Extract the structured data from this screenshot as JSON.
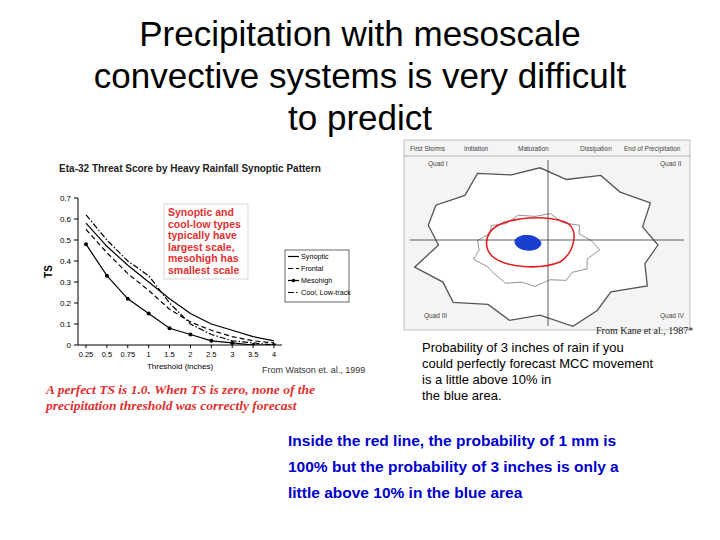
{
  "slide": {
    "title": [
      "Precipitation with mesoscale",
      "convective systems is very difficult",
      "to predict"
    ],
    "caption": [
      "Probability of 3 inches of rain if you",
      "could perfectly forecast MCC movement",
      "is a little above 10% in",
      "the blue area."
    ],
    "note": [
      "Inside the red line, the probability of 1 mm is",
      "100% but the probability of 3 inches is only a",
      "little above 10% in the blue area"
    ]
  },
  "chart_data": {
    "type": "line",
    "title": "Eta-32 Threat Score by Heavy Rainfall Synoptic Pattern",
    "x_label": "Threshold (inches)",
    "y_label": "TS",
    "categories": [
      "0.25",
      "0.5",
      "0.75",
      "1",
      "1.5",
      "2",
      "2.5",
      "3",
      "3.5",
      "4"
    ],
    "series": [
      {
        "name": "Synoptic",
        "color": "#000000",
        "line_style": "solid",
        "marker": "none",
        "values": [
          0.58,
          0.47,
          0.38,
          0.3,
          0.22,
          0.15,
          0.1,
          0.07,
          0.04,
          0.02
        ]
      },
      {
        "name": "Frontal",
        "color": "#000000",
        "line_style": "dashed",
        "marker": "none",
        "values": [
          0.55,
          0.44,
          0.34,
          0.26,
          0.17,
          0.11,
          0.07,
          0.04,
          0.02,
          0.01
        ]
      },
      {
        "name": "Mesohigh",
        "color": "#000000",
        "line_style": "solid",
        "marker": "circle",
        "values": [
          0.48,
          0.33,
          0.22,
          0.15,
          0.08,
          0.05,
          0.02,
          0.01,
          0,
          0
        ]
      },
      {
        "name": "Cool, Low-track",
        "color": "#000000",
        "line_style": "dashdot",
        "marker": "none",
        "values": [
          0.62,
          0.5,
          0.4,
          0.33,
          0.2,
          0.1,
          0.05,
          0.02,
          0.01,
          0
        ]
      }
    ],
    "ylim": [
      0,
      0.7
    ],
    "yticks": [
      0,
      0.1,
      0.2,
      0.3,
      0.4,
      0.5,
      0.6,
      0.7
    ],
    "grid": false,
    "legend": "right",
    "annotations": [
      "Synoptic and",
      "cool-low types",
      "typically have",
      "largest scale,",
      "mesohigh has",
      "smallest scale"
    ],
    "source": "From Watson et. al., 1999",
    "footnote": [
      "A perfect TS is 1.0. When TS is zero, none of the",
      "precipitation threshold was correctly forecast"
    ]
  },
  "diagram": {
    "stages": [
      "First Storms",
      "Initiation",
      "Maturation",
      "Dissipation",
      "End of Precipitation"
    ],
    "quadrants": [
      "Quad I",
      "Quad II",
      "Quad III",
      "Quad IV"
    ],
    "source": "From Kane et al., 1987*"
  }
}
